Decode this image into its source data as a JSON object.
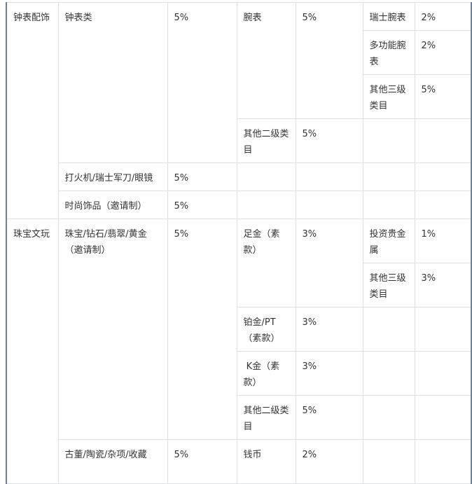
{
  "watches": {
    "category": "钟表配饰",
    "watch_class": {
      "name": "钟表类",
      "rate": "5%"
    },
    "wristwatch": {
      "name": "腕表",
      "rate": "5%"
    },
    "swiss": {
      "name": "瑞士腕表",
      "rate": "2%"
    },
    "multi": {
      "name": "多功能腕表",
      "rate": "2%"
    },
    "other3": {
      "name": "其他三级类目",
      "rate": "5%"
    },
    "other2": {
      "name": "其他二级类目",
      "rate": "5%"
    },
    "lighter": {
      "name": "打火机/瑞士军刀/眼镜",
      "rate": "5%"
    },
    "fashion": {
      "name": "时尚饰品（邀请制）",
      "rate": "5%"
    }
  },
  "jewelry": {
    "category": "珠宝文玩",
    "jewel_class": {
      "name": "珠宝/钻石/翡翠/黄金（邀请制）",
      "rate": "5%"
    },
    "gold": {
      "name": "足金（素款）",
      "rate": "3%"
    },
    "invest": {
      "name": "投资贵金属",
      "rate": "1%"
    },
    "other3": {
      "name": "其他三级类目",
      "rate": "3%"
    },
    "platinum": {
      "name": "铂金/PT（素款）",
      "rate": "3%"
    },
    "kgold": {
      "name": " K金（素款）",
      "rate": "3%"
    },
    "other2": {
      "name": "其他二级类目",
      "rate": "5%"
    },
    "antique": {
      "name": "古董/陶瓷/杂项/收藏",
      "rate": "5%"
    },
    "coins": {
      "name": "钱币",
      "rate": "2%"
    }
  }
}
